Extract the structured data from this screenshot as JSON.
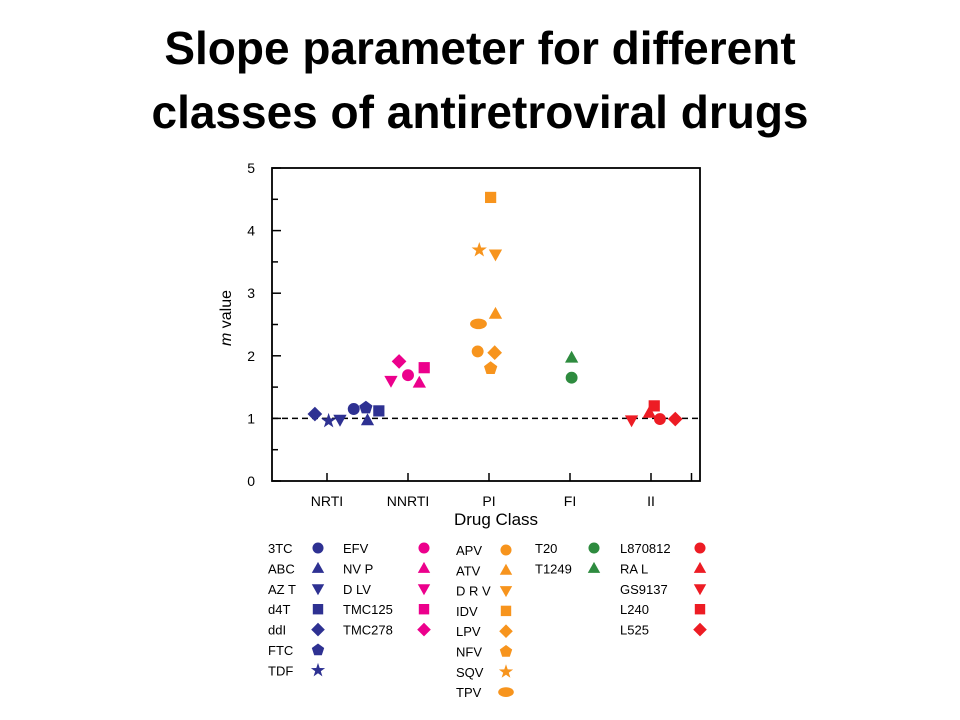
{
  "title_lines": [
    "Slope parameter for different",
    "classes of antiretroviral drugs"
  ],
  "chart_data": {
    "type": "scatter",
    "title": "Slope parameter for different classes of antiretroviral drugs",
    "xlabel": "Drug Class",
    "ylabel_italic": "m",
    "ylabel_rest": " value",
    "categories": [
      "NRTI",
      "NNRTI",
      "PI",
      "FI",
      "II"
    ],
    "ylim": [
      0,
      5
    ],
    "yticks": [
      0,
      1,
      2,
      3,
      4,
      5
    ],
    "reference_line": 1,
    "colors": {
      "NRTI": "#2E3192",
      "NNRTI": "#EC008C",
      "PI": "#F7941D",
      "FI": "#2E8B3F",
      "II": "#ED1C24"
    },
    "series": [
      {
        "name": "3TC",
        "class": "NRTI",
        "marker": "circle",
        "x": 0.33,
        "y": 1.15
      },
      {
        "name": "ABC",
        "class": "NRTI",
        "marker": "triangle-up",
        "x": 0.5,
        "y": 0.97
      },
      {
        "name": "AZ T",
        "class": "NRTI",
        "marker": "triangle-down",
        "x": 0.16,
        "y": 0.98
      },
      {
        "name": "d4T",
        "class": "NRTI",
        "marker": "square",
        "x": 0.64,
        "y": 1.12
      },
      {
        "name": "ddI",
        "class": "NRTI",
        "marker": "diamond",
        "x": -0.15,
        "y": 1.07
      },
      {
        "name": "FTC",
        "class": "NRTI",
        "marker": "pentagon",
        "x": 0.48,
        "y": 1.17
      },
      {
        "name": "TDF",
        "class": "NRTI",
        "marker": "star",
        "x": 0.02,
        "y": 0.96
      },
      {
        "name": "EFV",
        "class": "NNRTI",
        "marker": "circle",
        "x": 1.0,
        "y": 1.69
      },
      {
        "name": "NV P",
        "class": "NNRTI",
        "marker": "triangle-up",
        "x": 1.14,
        "y": 1.57
      },
      {
        "name": "D LV",
        "class": "NNRTI",
        "marker": "triangle-down",
        "x": 0.79,
        "y": 1.6
      },
      {
        "name": "TMC125",
        "class": "NNRTI",
        "marker": "square",
        "x": 1.2,
        "y": 1.81
      },
      {
        "name": "TMC278",
        "class": "NNRTI",
        "marker": "diamond",
        "x": 0.89,
        "y": 1.91
      },
      {
        "name": "APV",
        "class": "PI",
        "marker": "circle",
        "x": 1.86,
        "y": 2.07
      },
      {
        "name": "ATV",
        "class": "PI",
        "marker": "triangle-up",
        "x": 2.08,
        "y": 2.67
      },
      {
        "name": "D R V",
        "class": "PI",
        "marker": "triangle-down",
        "x": 2.08,
        "y": 3.62
      },
      {
        "name": "IDV",
        "class": "PI",
        "marker": "square",
        "x": 2.02,
        "y": 4.53
      },
      {
        "name": "LPV",
        "class": "PI",
        "marker": "diamond",
        "x": 2.07,
        "y": 2.05
      },
      {
        "name": "NFV",
        "class": "PI",
        "marker": "pentagon",
        "x": 2.02,
        "y": 1.8
      },
      {
        "name": "SQV",
        "class": "PI",
        "marker": "star",
        "x": 1.88,
        "y": 3.69
      },
      {
        "name": "TPV",
        "class": "PI",
        "marker": "oval",
        "x": 1.87,
        "y": 2.51
      },
      {
        "name": "T20",
        "class": "FI",
        "marker": "circle",
        "x": 3.02,
        "y": 1.65
      },
      {
        "name": "T1249",
        "class": "FI",
        "marker": "triangle-up",
        "x": 3.02,
        "y": 1.97
      },
      {
        "name": "L870812",
        "class": "II",
        "marker": "circle",
        "x": 4.11,
        "y": 0.99
      },
      {
        "name": "RA L",
        "class": "II",
        "marker": "triangle-up",
        "x": 3.98,
        "y": 1.09
      },
      {
        "name": "GS9137",
        "class": "II",
        "marker": "triangle-down",
        "x": 3.76,
        "y": 0.97
      },
      {
        "name": "L240",
        "class": "II",
        "marker": "square",
        "x": 4.04,
        "y": 1.2
      },
      {
        "name": "L525",
        "class": "II",
        "marker": "diamond",
        "x": 4.3,
        "y": 0.99
      }
    ]
  }
}
